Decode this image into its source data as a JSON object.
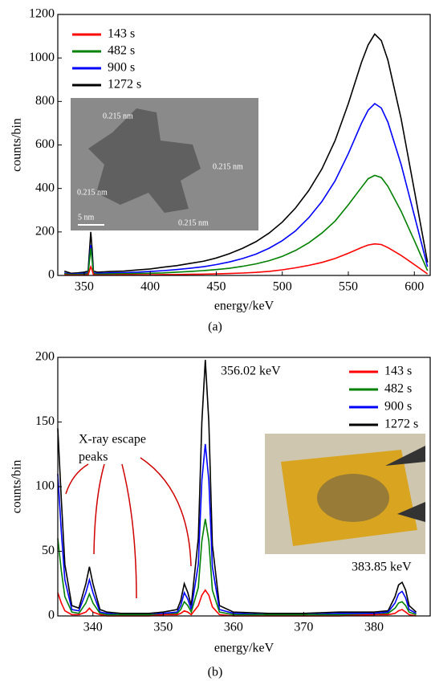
{
  "chart_data": [
    {
      "type": "line",
      "caption": "(a)",
      "x_label": "energy/keV",
      "y_label": "counts/bin",
      "xlim": [
        330,
        612
      ],
      "ylim": [
        0,
        1200
      ],
      "xticks": [
        350,
        400,
        450,
        500,
        550,
        600
      ],
      "yticks": [
        0,
        200,
        400,
        600,
        800,
        1000,
        1200
      ],
      "inset_labels": [
        "0.215 nm",
        "0.215 nm",
        "0.215 nm",
        "0.215 nm",
        "5 nm"
      ],
      "x": [
        335,
        340,
        345,
        350,
        353,
        355,
        356,
        357,
        360,
        370,
        380,
        390,
        400,
        410,
        420,
        430,
        440,
        450,
        460,
        470,
        480,
        490,
        500,
        510,
        520,
        530,
        540,
        550,
        560,
        565,
        570,
        575,
        580,
        590,
        600,
        610
      ],
      "series": [
        {
          "name": "1272 s",
          "color": "#000000",
          "values": [
            20,
            10,
            12,
            15,
            20,
            200,
            120,
            20,
            15,
            18,
            20,
            25,
            30,
            38,
            45,
            55,
            65,
            80,
            100,
            125,
            155,
            195,
            245,
            310,
            390,
            490,
            620,
            790,
            980,
            1060,
            1110,
            1080,
            990,
            720,
            390,
            60
          ]
        },
        {
          "name": "900 s",
          "color": "#0000ff",
          "values": [
            12,
            6,
            8,
            10,
            12,
            140,
            80,
            12,
            10,
            12,
            13,
            15,
            18,
            22,
            27,
            33,
            40,
            50,
            62,
            78,
            98,
            125,
            160,
            205,
            265,
            340,
            435,
            560,
            700,
            760,
            790,
            770,
            705,
            510,
            275,
            40
          ]
        },
        {
          "name": "482 s",
          "color": "#008000",
          "values": [
            8,
            4,
            5,
            6,
            8,
            125,
            70,
            8,
            6,
            7,
            8,
            9,
            10,
            12,
            15,
            18,
            22,
            27,
            33,
            42,
            53,
            68,
            88,
            115,
            150,
            195,
            250,
            325,
            405,
            445,
            460,
            450,
            410,
            295,
            160,
            22
          ]
        },
        {
          "name": "143 s",
          "color": "#ff0000",
          "values": [
            3,
            1,
            2,
            2,
            3,
            40,
            25,
            3,
            2,
            2,
            3,
            3,
            3,
            4,
            4,
            5,
            6,
            7,
            9,
            11,
            14,
            19,
            26,
            35,
            46,
            60,
            78,
            102,
            128,
            140,
            145,
            142,
            128,
            92,
            50,
            7
          ]
        }
      ],
      "legend_order": [
        3,
        2,
        1,
        0
      ]
    },
    {
      "type": "line",
      "caption": "(b)",
      "x_label": "energy/keV",
      "y_label": "counts/bin",
      "xlim": [
        335,
        388
      ],
      "ylim": [
        0,
        200
      ],
      "xticks": [
        340,
        350,
        360,
        370,
        380
      ],
      "yticks": [
        0,
        50,
        100,
        150,
        200
      ],
      "annotations": [
        {
          "text": "356.02 keV",
          "color": "#0000ff"
        },
        {
          "text": "383.85 keV",
          "color": "#0000ff"
        },
        {
          "text": "X-ray escape",
          "color": "#ff0000"
        },
        {
          "text": "peaks",
          "color": "#ff0000"
        }
      ],
      "x": [
        335,
        335.5,
        336,
        337,
        338,
        339,
        339.5,
        340,
        341,
        342,
        344,
        346,
        348,
        350,
        352,
        352.5,
        353,
        353.5,
        354,
        355,
        355.5,
        356,
        356.5,
        357,
        358,
        360,
        365,
        370,
        375,
        380,
        382,
        383,
        383.5,
        384,
        384.5,
        385,
        386
      ],
      "series": [
        {
          "name": "1272 s",
          "color": "#000000",
          "values": [
            145,
            90,
            40,
            8,
            6,
            25,
            38,
            25,
            5,
            3,
            2,
            2,
            2,
            3,
            5,
            12,
            25,
            18,
            8,
            60,
            150,
            198,
            150,
            55,
            8,
            3,
            2,
            2,
            3,
            3,
            4,
            15,
            24,
            26,
            20,
            8,
            3
          ]
        },
        {
          "name": "900 s",
          "color": "#0000ff",
          "values": [
            110,
            65,
            28,
            5,
            4,
            18,
            28,
            18,
            3,
            2,
            1,
            1,
            1,
            2,
            3,
            8,
            18,
            13,
            5,
            40,
            105,
            133,
            105,
            38,
            5,
            2,
            1,
            1,
            2,
            2,
            3,
            10,
            17,
            19,
            14,
            5,
            2
          ]
        },
        {
          "name": "482 s",
          "color": "#008000",
          "values": [
            60,
            35,
            15,
            3,
            2,
            10,
            17,
            10,
            2,
            1,
            1,
            1,
            1,
            1,
            2,
            5,
            11,
            8,
            3,
            22,
            58,
            75,
            58,
            20,
            3,
            1,
            1,
            1,
            1,
            1,
            2,
            6,
            10,
            11,
            8,
            3,
            1
          ]
        },
        {
          "name": "143 s",
          "color": "#ff0000",
          "values": [
            18,
            10,
            4,
            1,
            1,
            3,
            6,
            3,
            1,
            0,
            0,
            0,
            0,
            1,
            1,
            2,
            4,
            3,
            1,
            8,
            16,
            20,
            16,
            7,
            1,
            0,
            0,
            0,
            0,
            1,
            1,
            2,
            4,
            5,
            3,
            1,
            0
          ]
        }
      ],
      "legend_order": [
        3,
        2,
        1,
        0
      ]
    }
  ]
}
